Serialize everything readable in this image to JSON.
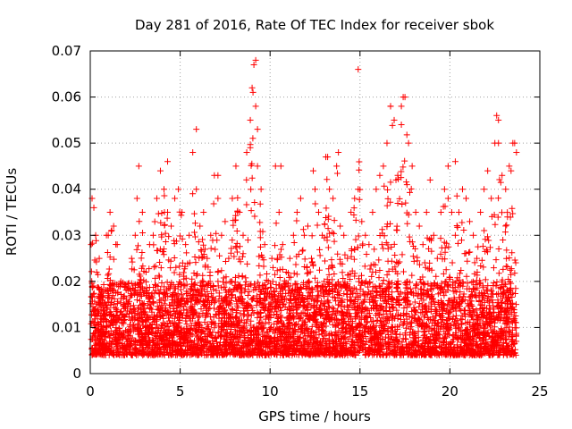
{
  "chart_data": {
    "type": "scatter",
    "title": "Day 281 of 2016, Rate Of TEC Index for receiver sbok",
    "xlabel": "GPS time / hours",
    "ylabel": "ROTI / TECUs",
    "xlim": [
      0,
      25
    ],
    "ylim": [
      0,
      0.07
    ],
    "xticks": [
      "0",
      "5",
      "10",
      "15",
      "20",
      "25"
    ],
    "yticks": [
      "0",
      "0.01",
      "0.02",
      "0.03",
      "0.04",
      "0.05",
      "0.06",
      "0.07"
    ],
    "grid": true,
    "marker": "+",
    "series": [
      {
        "name": "ROTI",
        "color": "#ff0000",
        "x": [
          0.05,
          0.2,
          0.3,
          0.5,
          0.7,
          0.9,
          1.1,
          1.3,
          1.5,
          1.7,
          1.9,
          2.1,
          2.3,
          2.5,
          2.7,
          2.9,
          3.1,
          3.3,
          3.5,
          3.7,
          3.9,
          4.1,
          4.3,
          4.5,
          4.7,
          4.9,
          5.1,
          5.3,
          5.5,
          5.7,
          5.9,
          6.1,
          6.3,
          6.5,
          6.7,
          6.9,
          7.1,
          7.3,
          7.5,
          7.7,
          7.9,
          8.1,
          8.3,
          8.5,
          8.7,
          8.9,
          9.0,
          9.1,
          9.2,
          9.3,
          9.5,
          9.7,
          9.9,
          10.1,
          10.3,
          10.5,
          10.7,
          10.9,
          11.1,
          11.3,
          11.5,
          11.7,
          11.9,
          12.1,
          12.3,
          12.5,
          12.7,
          12.9,
          13.1,
          13.3,
          13.5,
          13.7,
          13.9,
          14.1,
          14.3,
          14.5,
          14.7,
          14.9,
          15.1,
          15.3,
          15.5,
          15.7,
          15.9,
          16.1,
          16.3,
          16.5,
          16.7,
          16.9,
          17.1,
          17.3,
          17.5,
          17.7,
          17.9,
          18.1,
          18.3,
          18.5,
          18.7,
          18.9,
          19.1,
          19.3,
          19.5,
          19.7,
          19.9,
          20.1,
          20.3,
          20.5,
          20.7,
          20.9,
          21.1,
          21.3,
          21.5,
          21.7,
          21.9,
          22.1,
          22.3,
          22.5,
          22.7,
          22.9,
          23.1,
          23.3,
          23.5,
          23.7,
          0.1,
          1.0,
          2.6,
          4.3,
          5.9,
          7.1,
          8.9,
          9.05,
          9.2,
          9.3,
          10.6,
          12.4,
          13.2,
          13.8,
          14.9,
          16.7,
          17.0,
          17.3,
          17.4,
          19.9,
          20.3,
          22.6,
          22.7,
          23.4,
          23.6
        ],
        "y": [
          0.028,
          0.036,
          0.03,
          0.025,
          0.018,
          0.03,
          0.035,
          0.032,
          0.028,
          0.02,
          0.015,
          0.018,
          0.025,
          0.03,
          0.045,
          0.035,
          0.022,
          0.028,
          0.03,
          0.038,
          0.044,
          0.04,
          0.035,
          0.032,
          0.038,
          0.04,
          0.035,
          0.028,
          0.03,
          0.048,
          0.04,
          0.032,
          0.035,
          0.025,
          0.03,
          0.043,
          0.038,
          0.03,
          0.033,
          0.025,
          0.038,
          0.045,
          0.035,
          0.03,
          0.048,
          0.055,
          0.062,
          0.067,
          0.058,
          0.045,
          0.04,
          0.028,
          0.02,
          0.025,
          0.045,
          0.035,
          0.028,
          0.022,
          0.025,
          0.03,
          0.035,
          0.038,
          0.03,
          0.032,
          0.025,
          0.04,
          0.035,
          0.03,
          0.047,
          0.04,
          0.038,
          0.045,
          0.032,
          0.03,
          0.025,
          0.035,
          0.038,
          0.04,
          0.033,
          0.03,
          0.028,
          0.035,
          0.04,
          0.043,
          0.045,
          0.05,
          0.058,
          0.055,
          0.043,
          0.058,
          0.06,
          0.05,
          0.045,
          0.035,
          0.032,
          0.028,
          0.035,
          0.042,
          0.03,
          0.025,
          0.035,
          0.04,
          0.038,
          0.035,
          0.03,
          0.035,
          0.04,
          0.038,
          0.033,
          0.03,
          0.025,
          0.035,
          0.04,
          0.044,
          0.038,
          0.05,
          0.055,
          0.043,
          0.04,
          0.045,
          0.05,
          0.048,
          0.038,
          0.03,
          0.038,
          0.046,
          0.053,
          0.043,
          0.049,
          0.061,
          0.068,
          0.053,
          0.045,
          0.044,
          0.047,
          0.048,
          0.066,
          0.058,
          0.042,
          0.054,
          0.06,
          0.045,
          0.046,
          0.056,
          0.05,
          0.044,
          0.05
        ]
      }
    ]
  }
}
